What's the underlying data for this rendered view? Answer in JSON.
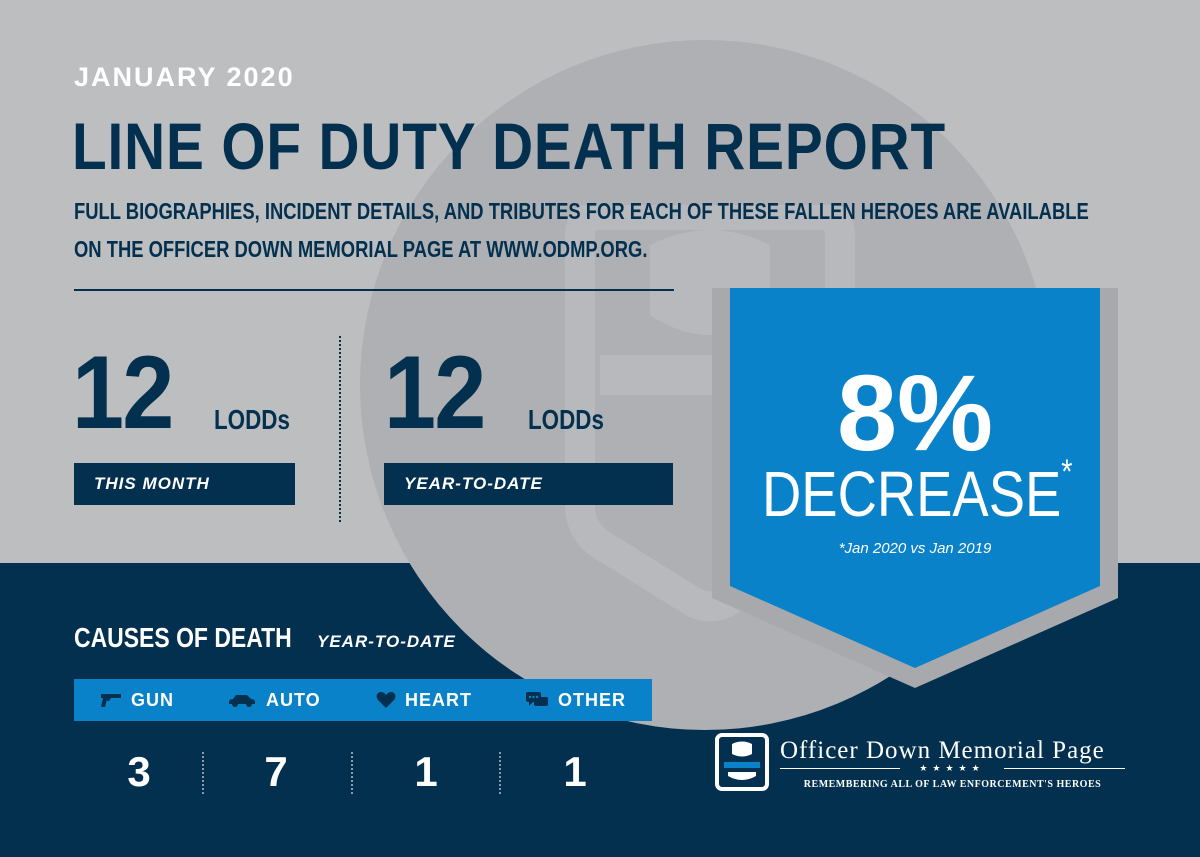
{
  "header": {
    "month": "JANUARY 2020",
    "title": "LINE OF DUTY DEATH REPORT",
    "subtitle_line1": "FULL BIOGRAPHIES, INCIDENT DETAILS, AND TRIBUTES FOR EACH OF THESE FALLEN HEROES ARE AVAILABLE",
    "subtitle_line2": "ON THE OFFICER DOWN MEMORIAL PAGE AT WWW.ODMP.ORG."
  },
  "stats": [
    {
      "value": "12",
      "unit": "LODDs",
      "label": "THIS MONTH"
    },
    {
      "value": "12",
      "unit": "LODDs",
      "label": "YEAR-TO-DATE"
    }
  ],
  "change": {
    "percent": "8%",
    "direction": "DECREASE",
    "asterisk": "*",
    "note": "*Jan 2020 vs Jan 2019"
  },
  "causes": {
    "title": "CAUSES OF DEATH",
    "subtitle": "YEAR-TO-DATE",
    "items": [
      {
        "icon": "gun-icon",
        "label": "GUN",
        "value": "3"
      },
      {
        "icon": "car-icon",
        "label": "AUTO",
        "value": "7"
      },
      {
        "icon": "heart-icon",
        "label": "HEART",
        "value": "1"
      },
      {
        "icon": "chat-bubbles-icon",
        "label": "OTHER",
        "value": "1"
      }
    ]
  },
  "logo": {
    "name": "Officer Down Memorial Page",
    "stars": "★★★★★",
    "tagline": "REMEMBERING ALL OF LAW ENFORCEMENT'S HEROES"
  },
  "colors": {
    "navy": "#04304f",
    "blue": "#0a82c9",
    "gray": "#bcbec0",
    "dark_gray": "#a7a9ac"
  }
}
